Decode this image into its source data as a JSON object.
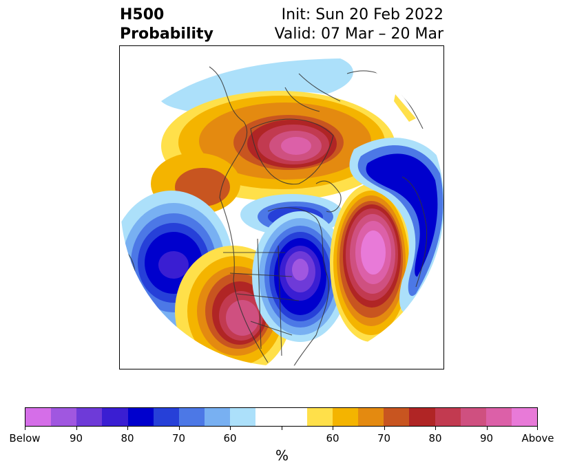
{
  "title": {
    "left_line1": "H500",
    "left_line2": "Probability",
    "right_line1": "Init: Sun 20 Feb 2022",
    "right_line2": "Valid: 07 Mar – 20 Mar"
  },
  "colorbar": {
    "colors": [
      "#d56ee8",
      "#a057e0",
      "#6e3ad8",
      "#3a1ed2",
      "#0000cd",
      "#2640d8",
      "#4c78e6",
      "#78b0f2",
      "#ace0fa",
      "#ffffff",
      "#ffffff",
      "#ffe04a",
      "#f4b400",
      "#e48a10",
      "#c85520",
      "#b02525",
      "#c23a50",
      "#cf5080",
      "#dc60a8",
      "#e87ad8"
    ],
    "tick_labels": [
      "Below",
      "90",
      "80",
      "70",
      "60",
      "",
      "60",
      "70",
      "80",
      "90",
      "Above"
    ],
    "unit": "%"
  },
  "map": {
    "projection": "north-polar-stereographic",
    "anomaly_regions": [
      {
        "name": "northern-canada-above",
        "category": "above",
        "peak": "90"
      },
      {
        "name": "western-us-above",
        "category": "above",
        "peak": "90"
      },
      {
        "name": "central-atlantic-above",
        "category": "above",
        "peak": "Above"
      },
      {
        "name": "north-pacific-below",
        "category": "below",
        "peak": "90"
      },
      {
        "name": "eastern-north-america-below",
        "category": "below",
        "peak": "90"
      },
      {
        "name": "north-atlantic-europe-below",
        "category": "below",
        "peak": "80"
      },
      {
        "name": "arctic-below",
        "category": "below",
        "peak": "60"
      }
    ]
  }
}
